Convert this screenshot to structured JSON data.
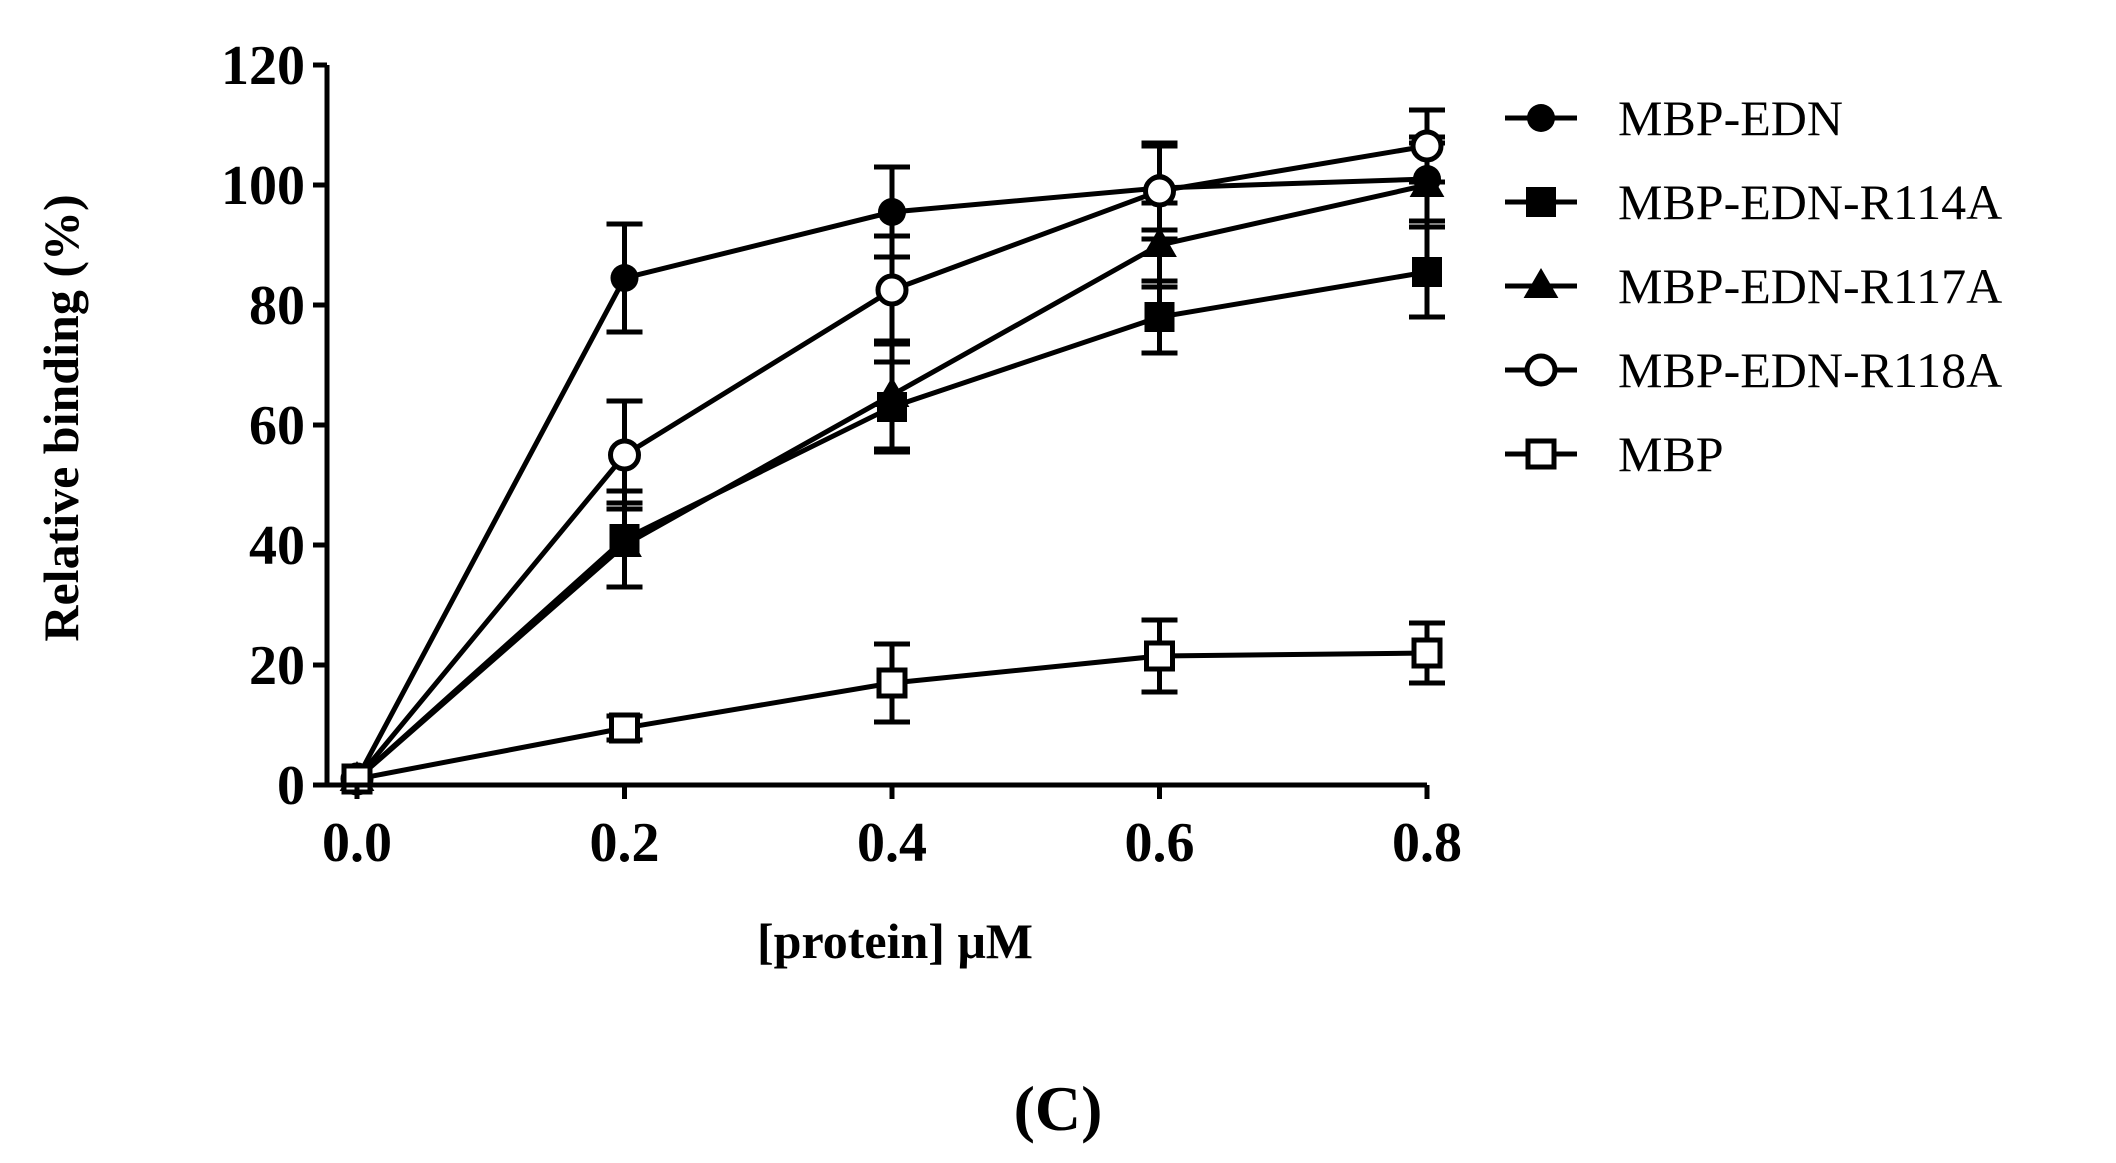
{
  "chart_data": {
    "type": "line",
    "title": "",
    "panel_label": "(C)",
    "xlabel": "[protein] μM",
    "ylabel": "Relative binding (%)",
    "xlim": [
      0,
      0.8
    ],
    "ylim": [
      0,
      120
    ],
    "x_ticks": [
      0.0,
      0.2,
      0.4,
      0.6,
      0.8
    ],
    "x_tick_labels": [
      "0.0",
      "0.2",
      "0.4",
      "0.6",
      "0.8"
    ],
    "y_ticks": [
      0,
      20,
      40,
      60,
      80,
      100,
      120
    ],
    "y_tick_labels": [
      "0",
      "20",
      "40",
      "60",
      "80",
      "100",
      "120"
    ],
    "grid": false,
    "legend_position": "right",
    "x": [
      0.0,
      0.2,
      0.4,
      0.6,
      0.8
    ],
    "series": [
      {
        "name": "MBP-EDN",
        "marker": "filled-circle",
        "values": [
          1,
          84.5,
          95.5,
          99.5,
          101
        ],
        "errors": [
          0,
          9,
          7.5,
          7,
          7
        ]
      },
      {
        "name": "MBP-EDN-R114A",
        "marker": "filled-square",
        "values": [
          1,
          41,
          63,
          78,
          85.5
        ],
        "errors": [
          0,
          8,
          7.5,
          6,
          7.5
        ]
      },
      {
        "name": "MBP-EDN-R117A",
        "marker": "filled-triangle",
        "values": [
          1,
          40,
          65,
          90,
          100
        ],
        "errors": [
          0,
          7,
          9,
          7,
          7
        ]
      },
      {
        "name": "MBP-EDN-R118A",
        "marker": "open-circle",
        "values": [
          1,
          55,
          82.5,
          99,
          106.5
        ],
        "errors": [
          0,
          9,
          9,
          8,
          6
        ]
      },
      {
        "name": "MBP",
        "marker": "open-square",
        "values": [
          1,
          9.5,
          17,
          21.5,
          22
        ],
        "errors": [
          0,
          2,
          6.5,
          6,
          5
        ]
      }
    ]
  }
}
